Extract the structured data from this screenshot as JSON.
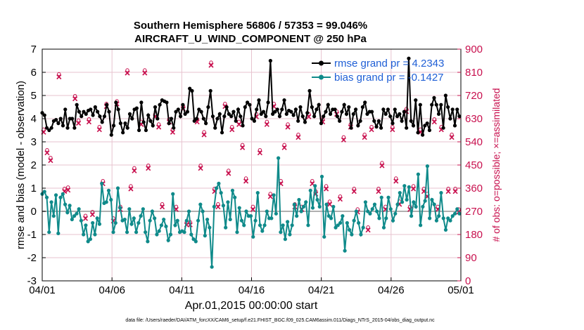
{
  "chart_data": {
    "type": "line",
    "title_line1": "Southern Hemisphere 56806 / 57353 = 99.046%",
    "title_line2": "AIRCRAFT_U_WIND_COMPONENT @ 250 hPa",
    "xlabel": "Apr.01,2015 00:00:00 start",
    "ylabel_left": "rmse and bias (model - observation)",
    "ylabel_right": "# of obs: o=possible; ×=assimilated",
    "footnote": "data file: /Users/raeder/DAI/ATM_forcXX/CAM6_setup/f.e21.FHIST_BGC.f09_025.CAM6assim.011/Diags_NTrS_2015-04/obs_diag_output.nc",
    "x_ticks": [
      "04/01",
      "04/06",
      "04/11",
      "04/16",
      "04/21",
      "04/26",
      "05/01"
    ],
    "x_tick_days": [
      0,
      5,
      10,
      15,
      20,
      25,
      30
    ],
    "xlim": [
      0,
      30
    ],
    "ylim_left": [
      -3,
      7
    ],
    "y_ticks_left": [
      "-3",
      "-2",
      "-1",
      "0",
      "1",
      "2",
      "3",
      "4",
      "5",
      "6",
      "7"
    ],
    "ylim_right": [
      0,
      900
    ],
    "y_ticks_right": [
      "0",
      "90",
      "180",
      "270",
      "360",
      "450",
      "540",
      "630",
      "720",
      "810",
      "900"
    ],
    "grid": true,
    "legend_position": "top-right",
    "colors": {
      "rmse": "#000000",
      "bias": "#0f8a8a",
      "obs": "#c8104e",
      "zero_line": "#b0b0b0",
      "grid": "#e7c3cf"
    },
    "series": [
      {
        "name": "rmse grand pr = 4.2343",
        "axis": "left",
        "values": [
          4.25,
          4.15,
          3.6,
          3.5,
          3.6,
          3.9,
          3.95,
          3.8,
          4.0,
          3.7,
          4.4,
          3.6,
          4.0,
          4.0,
          3.6,
          4.6,
          4.3,
          4.1,
          4.3,
          4.2,
          4.35,
          4.4,
          4.15,
          4.5,
          4.3,
          4.1,
          3.85,
          4.1,
          4.6,
          4.3,
          3.3,
          3.7,
          4.7,
          4.4,
          3.8,
          3.4,
          3.8,
          3.6,
          4.2,
          4.0,
          4.4,
          4.45,
          3.5,
          4.7,
          3.85,
          3.5,
          4.15,
          3.9,
          3.7,
          4.5,
          4.0,
          4.6,
          4.8,
          4.75,
          4.7,
          3.8,
          4.0,
          3.6,
          4.3,
          4.4,
          4.1,
          4.6,
          4.2,
          4.3,
          5.3,
          5.2,
          3.9,
          4.0,
          4.4,
          4.3,
          4.0,
          3.8,
          4.5,
          5.2,
          4.1,
          3.6,
          4.0,
          4.2,
          3.4,
          4.1,
          4.5,
          4.2,
          4.1,
          4.3,
          3.9,
          4.4,
          4.1,
          3.7,
          4.5,
          4.7,
          4.6,
          4.0,
          3.9,
          4.4,
          4.8,
          4.2,
          4.3,
          4.1,
          4.7,
          6.5,
          4.2,
          4.3,
          4.4,
          4.1,
          4.4,
          4.8,
          4.2,
          4.35,
          4.3,
          4.15,
          4.4,
          3.9,
          4.5,
          4.1,
          3.85,
          4.25,
          5.2,
          4.5,
          4.1,
          4.4,
          4.6,
          3.8,
          4.1,
          4.3,
          4.6,
          4.2,
          4.4,
          4.4,
          4.1,
          3.9,
          4.3,
          4.6,
          4.2,
          4.5,
          3.6,
          4.2,
          4.4,
          3.7,
          3.9,
          4.5,
          4.7,
          4.2,
          4.3,
          4.3,
          3.9,
          3.65,
          3.9,
          3.6,
          4.4,
          4.2,
          4.4,
          4.1,
          3.8,
          4.4,
          4.1,
          4.2,
          3.9,
          4.3,
          3.6,
          6.6,
          3.9,
          3.7,
          4.8,
          3.4,
          4.6,
          3.3,
          3.7,
          3.8,
          3.5,
          4.6,
          4.9,
          4.6,
          4.2,
          4.6,
          3.6,
          5.0,
          4.5,
          4.0,
          4.4,
          3.7,
          4.4,
          4.1
        ]
      },
      {
        "name": "bias grand pr = -0.1427",
        "axis": "left",
        "values": [
          0.75,
          0.85,
          0.6,
          -0.9,
          0.4,
          -0.2,
          0.7,
          -0.95,
          0.6,
          0.75,
          0.3,
          -0.05,
          0.25,
          -0.35,
          -0.2,
          -0.1,
          0.1,
          -0.4,
          -1.0,
          -0.6,
          -1.3,
          -1.2,
          -0.5,
          -1.0,
          -0.3,
          -0.55,
          1.2,
          0.35,
          0.4,
          0.9,
          0.5,
          -0.9,
          -0.5,
          1.0,
          0.15,
          -0.4,
          -0.35,
          -0.9,
          0.1,
          -0.55,
          -0.3,
          -0.9,
          -0.5,
          -0.2,
          0.1,
          -0.9,
          -1.3,
          -0.4,
          0.0,
          -0.3,
          -1.0,
          -0.85,
          -0.6,
          -0.35,
          -0.65,
          -1.25,
          -1.0,
          0.75,
          -0.6,
          -0.4,
          -0.9,
          -0.85,
          -0.9,
          -0.4,
          0.0,
          -1.0,
          -1.2,
          -1.3,
          -0.4,
          0.3,
          0.0,
          -1.05,
          -0.35,
          -0.7,
          -2.4,
          0.2,
          1.0,
          1.2,
          0.8,
          0.25,
          -0.7,
          0.4,
          -0.35,
          0.9,
          0.6,
          -0.9,
          0.15,
          -0.4,
          -0.6,
          0.0,
          -0.2,
          -0.2,
          -1.1,
          -0.4,
          0.8,
          -0.6,
          -0.85,
          -0.6,
          0.0,
          -0.3,
          -0.3,
          0.7,
          -0.1,
          2.3,
          -0.9,
          -0.6,
          -1.2,
          -0.45,
          -1.0,
          -0.6,
          0.3,
          -0.2,
          0.5,
          0.0,
          0.2,
          0.4,
          -0.6,
          0.9,
          0.15,
          1.1,
          0.5,
          0.2,
          1.5,
          -1.1,
          0.3,
          -0.2,
          -0.3,
          0.2,
          -0.7,
          -0.6,
          -0.5,
          -0.2,
          -1.7,
          -0.5,
          -0.8,
          -1.0,
          -0.4,
          0.0,
          -0.5,
          -1.0,
          -0.7,
          0.4,
          0.0,
          -0.1,
          0.1,
          0.3,
          0.0,
          -0.3,
          0.6,
          -0.7,
          -0.3,
          0.6,
          0.1,
          -0.4,
          -0.1,
          0.3,
          0.8,
          0.4,
          1.1,
          0.5,
          1.05,
          -0.2,
          0.4,
          0.2,
          1.6,
          -0.6,
          0.2,
          0.45,
          1.95,
          -0.3,
          0.5,
          0.3,
          -0.4,
          -0.2,
          0.8,
          -0.3,
          -0.8,
          -0.3,
          -0.4,
          -0.2,
          -0.1,
          0.1,
          -0.1
        ]
      }
    ],
    "obs_counts": {
      "axis": "right",
      "x_days": [
        0.1,
        0.35,
        0.6,
        1.2,
        1.6,
        1.85,
        2.35,
        2.6,
        3.1,
        3.35,
        3.6,
        4.1,
        4.35,
        4.6,
        5.1,
        5.35,
        5.6,
        6.1,
        6.35,
        6.6,
        7.1,
        7.35,
        7.6,
        8.1,
        8.35,
        8.6,
        9.1,
        9.35,
        9.6,
        10.1,
        10.35,
        10.6,
        11.1,
        11.35,
        11.6,
        12.1,
        12.35,
        12.6,
        13.1,
        13.35,
        13.6,
        14.1,
        14.35,
        14.6,
        15.1,
        15.35,
        15.6,
        16.1,
        16.35,
        16.6,
        17.1,
        17.35,
        17.6,
        18.1,
        18.35,
        18.6,
        19.1,
        19.35,
        19.6,
        20.1,
        20.35,
        20.6,
        21.1,
        21.35,
        21.6,
        22.1,
        22.35,
        22.6,
        23.1,
        23.35,
        23.6,
        24.1,
        24.35,
        24.6,
        25.1,
        25.35,
        25.6,
        26.1,
        26.35,
        26.6,
        27.1,
        27.35,
        27.6,
        28.1,
        28.35,
        28.6,
        29.1,
        29.35,
        29.6,
        29.85
      ],
      "values": [
        580,
        500,
        470,
        795,
        350,
        355,
        710,
        615,
        245,
        620,
        260,
        590,
        380,
        680,
        235,
        690,
        280,
        810,
        360,
        430,
        610,
        810,
        440,
        640,
        600,
        290,
        620,
        580,
        280,
        670,
        220,
        220,
        620,
        440,
        570,
        840,
        350,
        290,
        680,
        420,
        590,
        610,
        520,
        390,
        280,
        640,
        500,
        610,
        330,
        680,
        380,
        520,
        600,
        290,
        560,
        280,
        640,
        380,
        340,
        620,
        360,
        300,
        650,
        320,
        550,
        600,
        350,
        270,
        560,
        200,
        590,
        350,
        450,
        280,
        590,
        390,
        300,
        660,
        280,
        360,
        580,
        350,
        330,
        620,
        280,
        590,
        350,
        560,
        350,
        270
      ]
    }
  }
}
